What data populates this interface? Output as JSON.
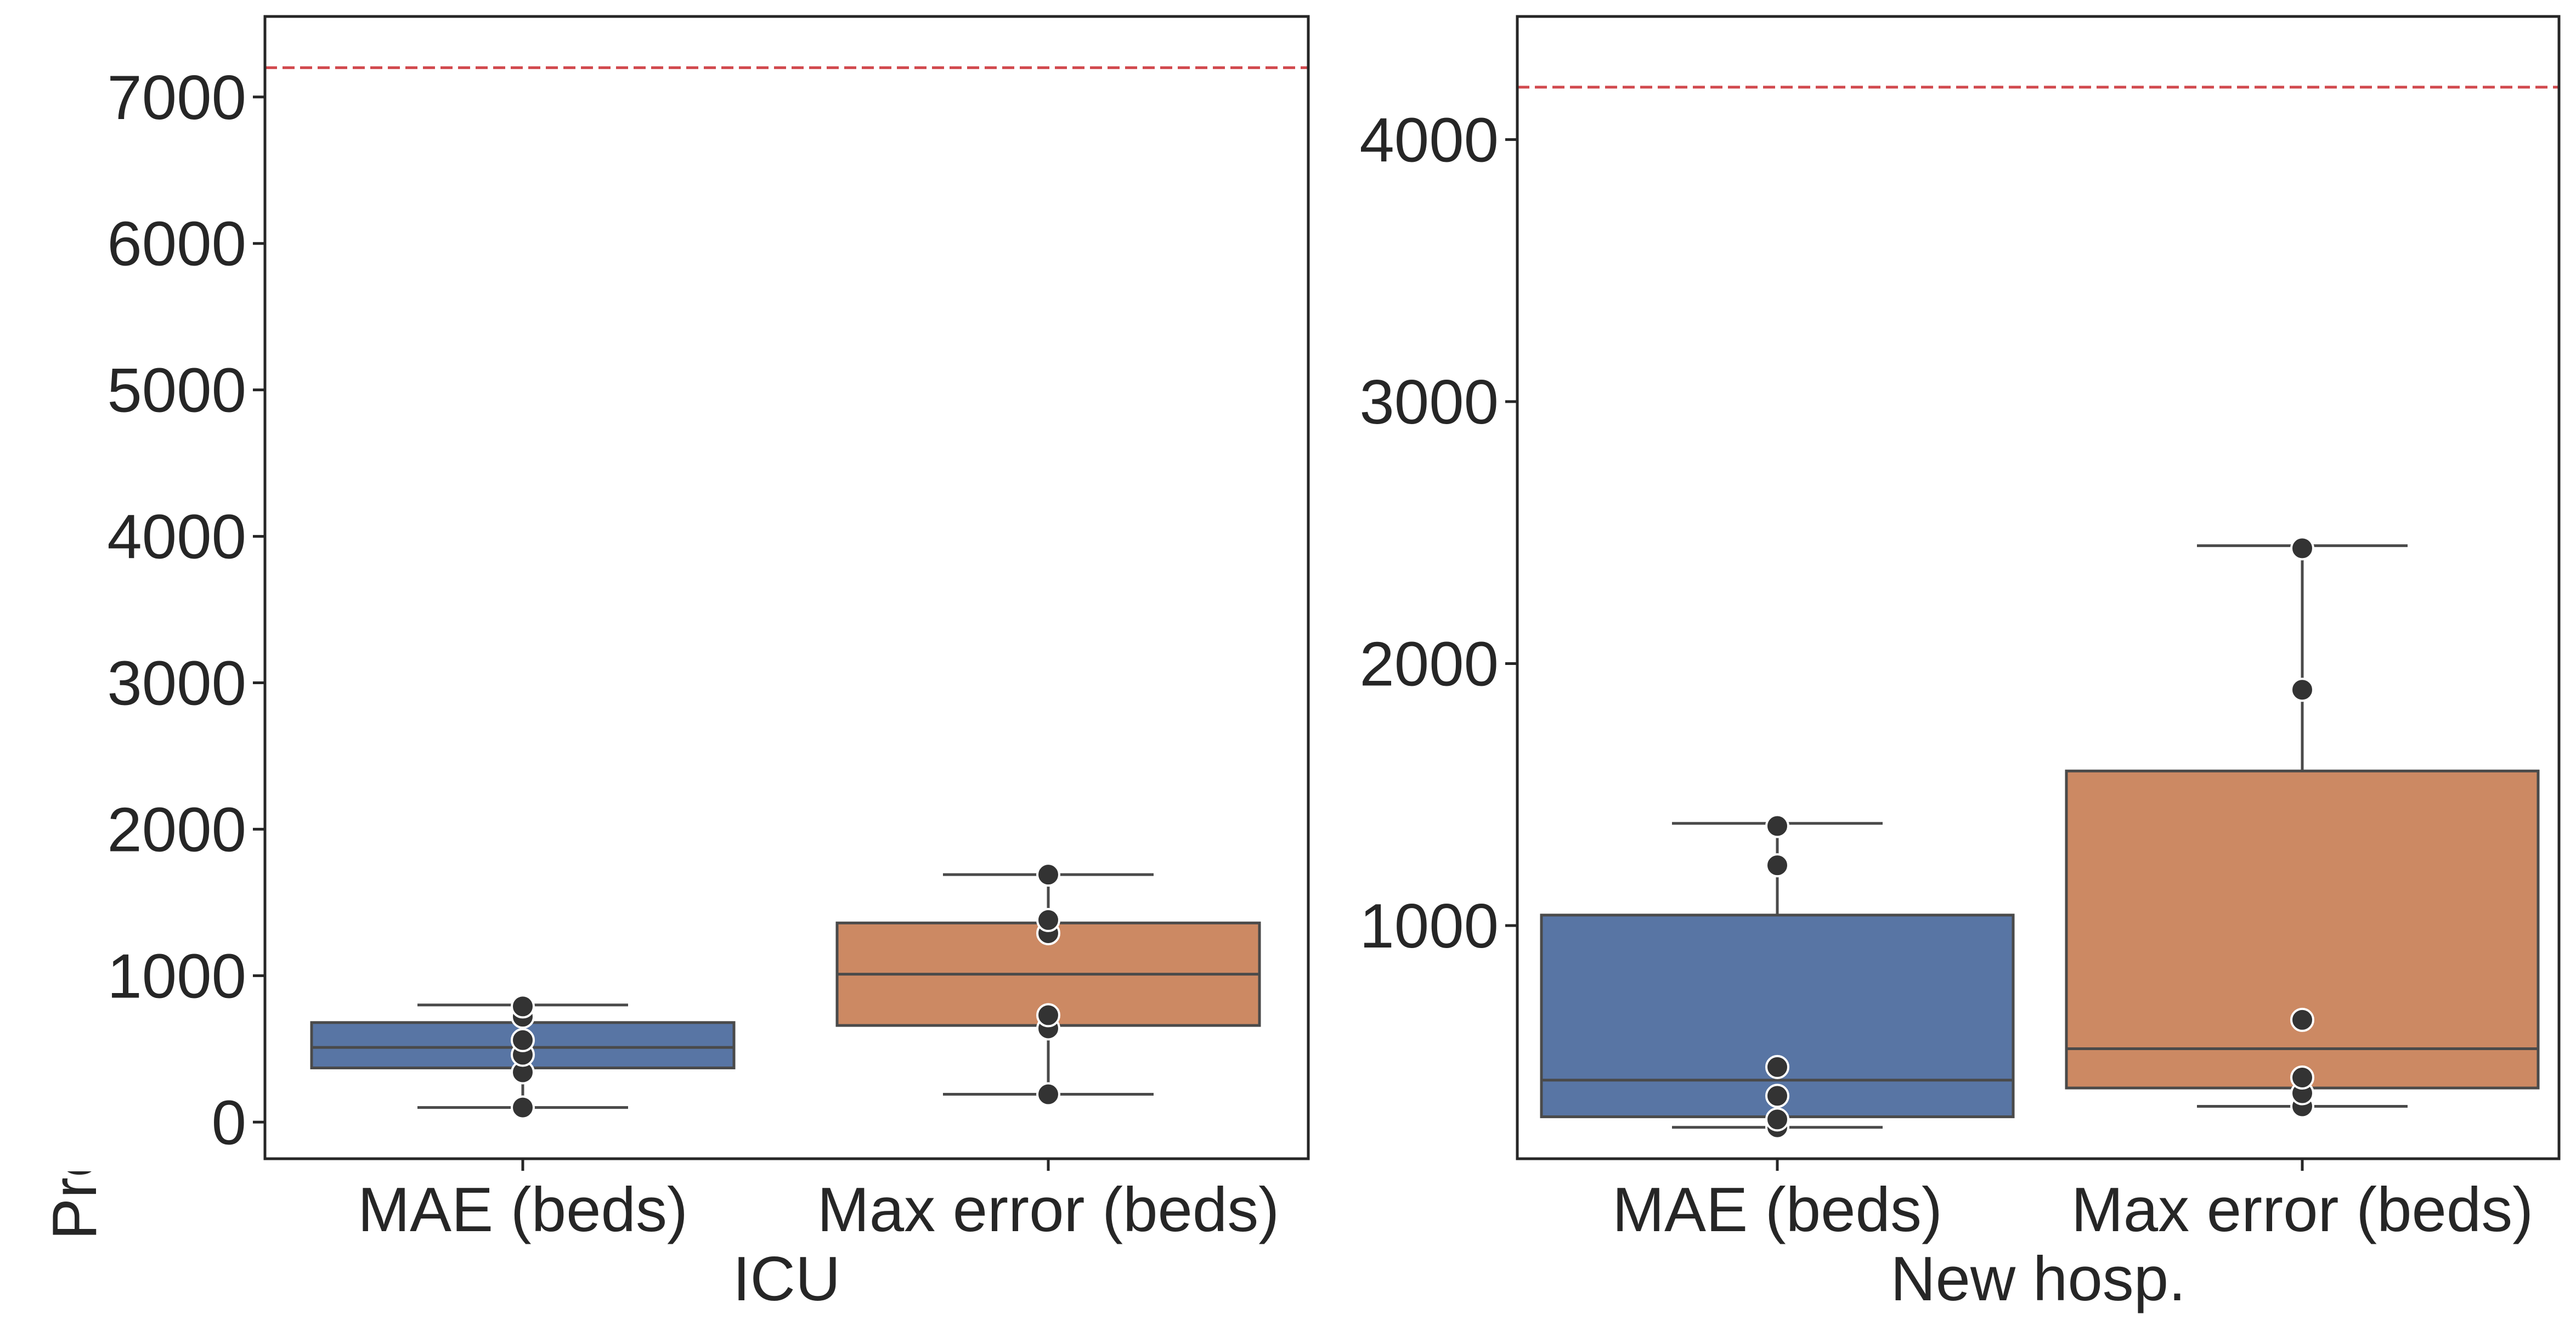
{
  "chart_data": [
    {
      "type": "box",
      "xlabel": "ICU",
      "ylabel": "Prediction error (number of occupied beds)",
      "categories": [
        "MAE (beds)",
        "Max error (beds)"
      ],
      "ylim": [
        -250,
        7550
      ],
      "yticks": [
        0,
        1000,
        2000,
        3000,
        4000,
        5000,
        6000,
        7000
      ],
      "reference_line": 7200,
      "boxes": [
        {
          "category": "MAE (beds)",
          "whisker_low": 100,
          "q1": 370,
          "median": 510,
          "q3": 680,
          "whisker_high": 800,
          "points": [
            100,
            340,
            460,
            560,
            720,
            790
          ]
        },
        {
          "category": "Max error (beds)",
          "whisker_low": 190,
          "q1": 660,
          "median": 1010,
          "q3": 1360,
          "whisker_high": 1690,
          "points": [
            190,
            640,
            730,
            1290,
            1380,
            1690
          ]
        }
      ]
    },
    {
      "type": "box",
      "xlabel": "New hosp.",
      "ylabel": "",
      "categories": [
        "MAE (beds)",
        "Max error (beds)"
      ],
      "ylim": [
        110,
        4470
      ],
      "yticks": [
        1000,
        2000,
        3000,
        4000
      ],
      "reference_line": 4200,
      "boxes": [
        {
          "category": "MAE (beds)",
          "whisker_low": 230,
          "q1": 270,
          "median": 410,
          "q3": 1040,
          "whisker_high": 1390,
          "points": [
            230,
            260,
            350,
            460,
            1230,
            1380
          ]
        },
        {
          "category": "Max error (beds)",
          "whisker_low": 310,
          "q1": 380,
          "median": 530,
          "q3": 1590,
          "whisker_high": 2450,
          "points": [
            310,
            360,
            420,
            640,
            1900,
            2440
          ]
        }
      ]
    }
  ],
  "colors": {
    "box_mae": "#5875a4",
    "box_max": "#cc8963",
    "lines": "#4a4a4a",
    "points": "#333333",
    "reference": "#d1494e",
    "frame": "#262626"
  }
}
